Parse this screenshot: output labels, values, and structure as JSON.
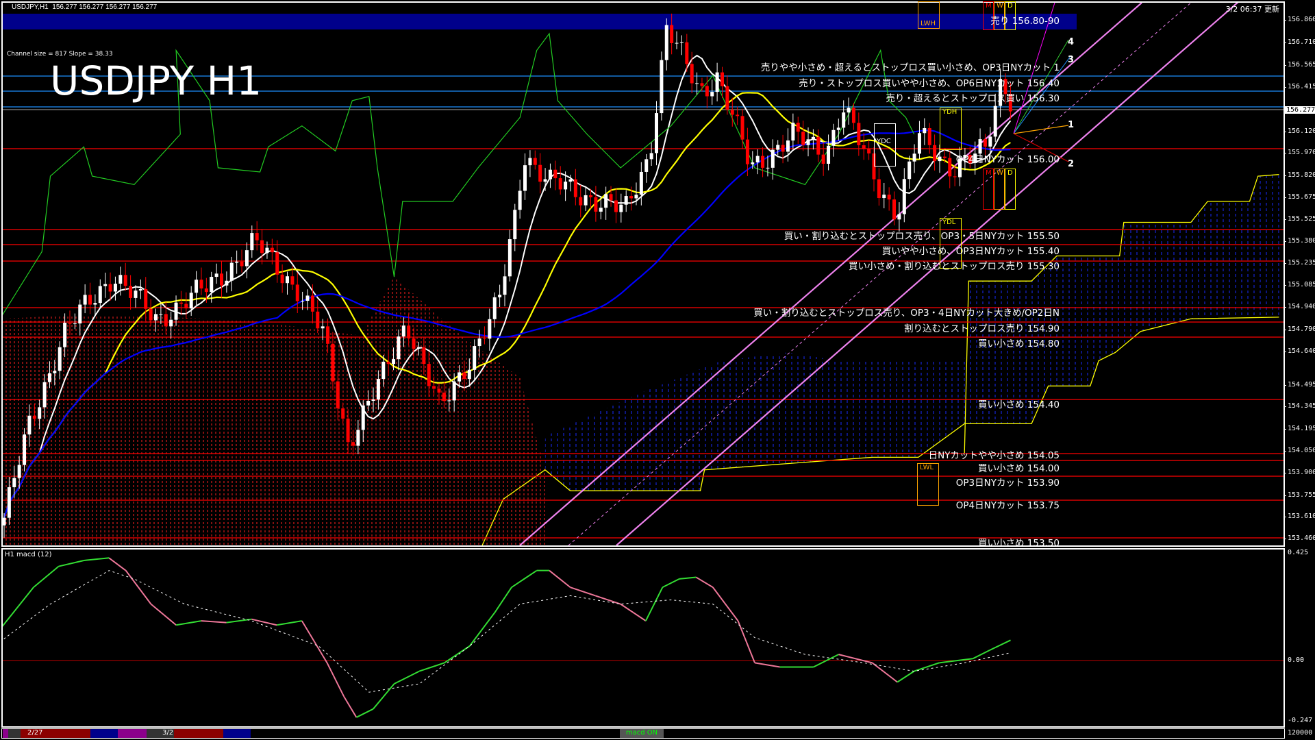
{
  "header": {
    "symbol": "USDJPY,H1",
    "ohlc": "156.277 156.277 156.277 156.277",
    "updated": "3/2 06:37 更新"
  },
  "channel_info": "Channel size = 817 Slope = 38.33",
  "title": "USDJPY H1",
  "current_price": "156.277",
  "colors": {
    "background": "#000000",
    "bull_candle": "#ffffff",
    "bear_candle": "#ff0000",
    "level_line": "#ff0000",
    "resistance_band": "#00008b",
    "channel": "#ee82ee",
    "ma_short": "#ffffff",
    "ma_mid": "#ffff00",
    "ma_long": "#0000ff",
    "cloud_upper": "#ffff00"
  },
  "levels": [
    {
      "text": "売り 156.80-90"
    },
    {
      "text": "売りやや小さめ・超えるとストップロス買い小さめ、OP3日NYカット 1"
    },
    {
      "text": "売り・ストップロス買いやや小さめ、OP6日NYカット 156.40"
    },
    {
      "text": "売り・超えるとストップロス買い 156.30"
    },
    {
      "text": "OP4日NYカット 156.00"
    },
    {
      "text": "買い・割り込むとストップロス売り、OP3・5日NYカット 155.50"
    },
    {
      "text": "買いやや小さめ、OP3日NYカット 155.40"
    },
    {
      "text": "買い小さめ・割り込むとストップロス売り 155.30"
    },
    {
      "text": "買い・割り込むとストップロス売り、OP3・4日NYカット大きめ/OP2日N"
    },
    {
      "text": "割り込むとストップロス売り 154.90"
    },
    {
      "text": "買い小さめ 154.80"
    },
    {
      "text": "買い小さめ 154.40"
    },
    {
      "text": "日NYカットやや小さめ 154.05"
    },
    {
      "text": "買い小さめ 154.00"
    },
    {
      "text": "OP3日NYカット 153.90"
    },
    {
      "text": "OP4日NYカット 153.75"
    },
    {
      "text": "買い小さめ 153.50"
    }
  ],
  "boxes": {
    "lwh": "LWH",
    "lwl": "LWL",
    "ydh": "YDH",
    "ydl": "YDL",
    "ydc": "YDC",
    "m": "M",
    "w": "W",
    "d": "D"
  },
  "channel_numbers": [
    "4",
    "3",
    "1",
    "2"
  ],
  "price_axis": [
    "156.860",
    "156.710",
    "156.565",
    "156.415",
    "156.120",
    "155.970",
    "155.820",
    "155.675",
    "155.525",
    "155.380",
    "155.235",
    "155.085",
    "154.940",
    "154.790",
    "154.640",
    "154.495",
    "154.345",
    "154.195",
    "154.050",
    "153.900",
    "153.755",
    "153.610",
    "153.460"
  ],
  "macd": {
    "label": "H1  macd (12)",
    "axis": [
      "0.425",
      "0.00",
      "-0.247"
    ]
  },
  "bottom_bar": {
    "dates": [
      "2/27",
      "3/2"
    ],
    "macd_toggle": "macd ON",
    "volume_axis": "120000"
  }
}
